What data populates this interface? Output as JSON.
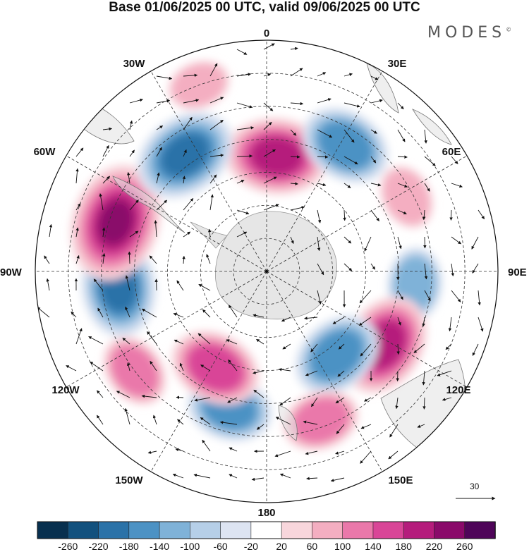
{
  "title": "Base 01/06/2025 00 UTC, valid 09/06/2025 00 UTC",
  "brand": "MODES",
  "brand_mark": "©",
  "lon_labels": [
    "0",
    "30E",
    "60E",
    "90E",
    "120E",
    "150E",
    "180",
    "150W",
    "120W",
    "90W",
    "60W",
    "30W"
  ],
  "reference_vector": {
    "value": "30"
  },
  "colorbar": {
    "ticks": [
      "-260",
      "-220",
      "-180",
      "-140",
      "-100",
      "-60",
      "-20",
      "20",
      "60",
      "100",
      "140",
      "180",
      "220",
      "260"
    ],
    "colors": [
      "#08304f",
      "#12517e",
      "#2a72a8",
      "#4c92c4",
      "#7fb2d8",
      "#b6cfe8",
      "#dde4f2",
      "#ffffff",
      "#f8d6dc",
      "#f4aec1",
      "#ea78aa",
      "#d94597",
      "#b51c7c",
      "#8a0a6a",
      "#4f0559"
    ]
  },
  "anomaly_cells": [
    {
      "lon": 5,
      "lat": -55,
      "value": 200
    },
    {
      "lon": 32,
      "lat": -45,
      "value": -160
    },
    {
      "lon": 62,
      "lat": -42,
      "value": 70
    },
    {
      "lon": 95,
      "lat": -45,
      "value": -100
    },
    {
      "lon": 122,
      "lat": -48,
      "value": 200
    },
    {
      "lon": 140,
      "lat": -57,
      "value": -160
    },
    {
      "lon": 160,
      "lat": -42,
      "value": 110
    },
    {
      "lon": -165,
      "lat": -47,
      "value": -140
    },
    {
      "lon": -152,
      "lat": -57,
      "value": 160
    },
    {
      "lon": -127,
      "lat": -40,
      "value": 100
    },
    {
      "lon": -96,
      "lat": -45,
      "value": -190
    },
    {
      "lon": -72,
      "lat": -42,
      "value": 250
    },
    {
      "lon": -35,
      "lat": -47,
      "value": -200
    },
    {
      "lon": -20,
      "lat": -30,
      "value": 60
    }
  ]
}
